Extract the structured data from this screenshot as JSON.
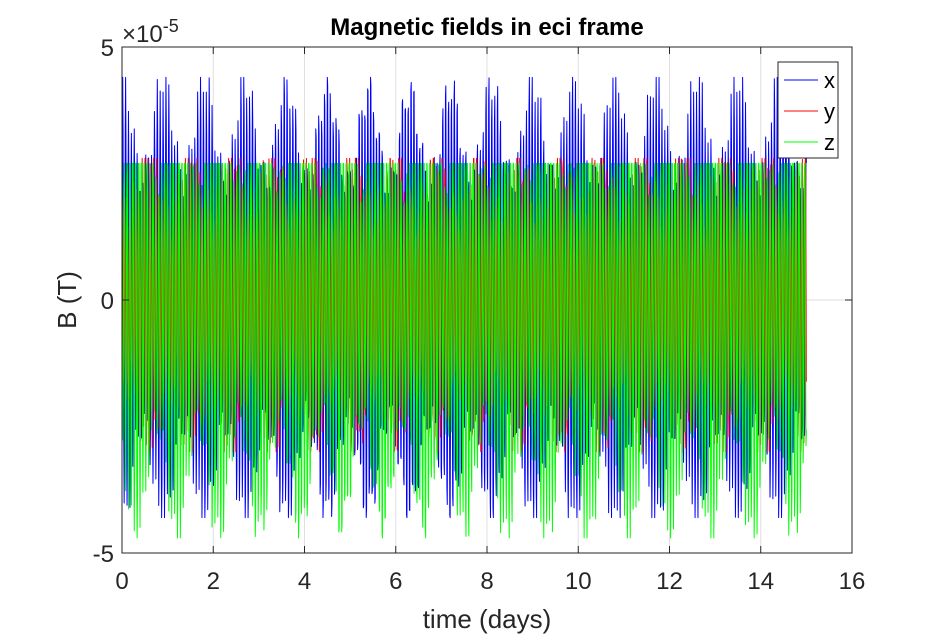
{
  "chart_data": {
    "type": "line",
    "title": "Magnetic fields in eci frame",
    "xlabel": "time (days)",
    "ylabel": "B (T)",
    "exponent_label": "×10",
    "exponent_power": "-5",
    "xlim": [
      0,
      16
    ],
    "ylim": [
      -5,
      5
    ],
    "y_scale_factor": "1e-5",
    "xticks": [
      0,
      2,
      4,
      6,
      8,
      10,
      12,
      14,
      16
    ],
    "yticks": [
      -5,
      0,
      5
    ],
    "xtick_labels": [
      "0",
      "2",
      "4",
      "6",
      "8",
      "10",
      "12",
      "14",
      "16"
    ],
    "ytick_labels": [
      "-5",
      "0",
      "5"
    ],
    "grid": true,
    "legend_position": "top-right",
    "data_x_range_days": [
      0,
      15
    ],
    "orbit_period_days": 0.0632,
    "daily_modulation_period_days": 0.9,
    "series": [
      {
        "name": "x",
        "color": "#0000ff",
        "amplitude_min": 2.4,
        "amplitude_max": 4.4,
        "min_value": -4.3,
        "max_value": 4.4
      },
      {
        "name": "y",
        "color": "#ff0000",
        "amplitude_min": 1.8,
        "amplitude_max": 3.0,
        "min_value": -3.0,
        "max_value": 2.8
      },
      {
        "name": "z",
        "color": "#00ff00",
        "amplitude_min": 2.4,
        "amplitude_max": 4.7,
        "min_value": -4.7,
        "max_value": 2.7
      }
    ]
  }
}
